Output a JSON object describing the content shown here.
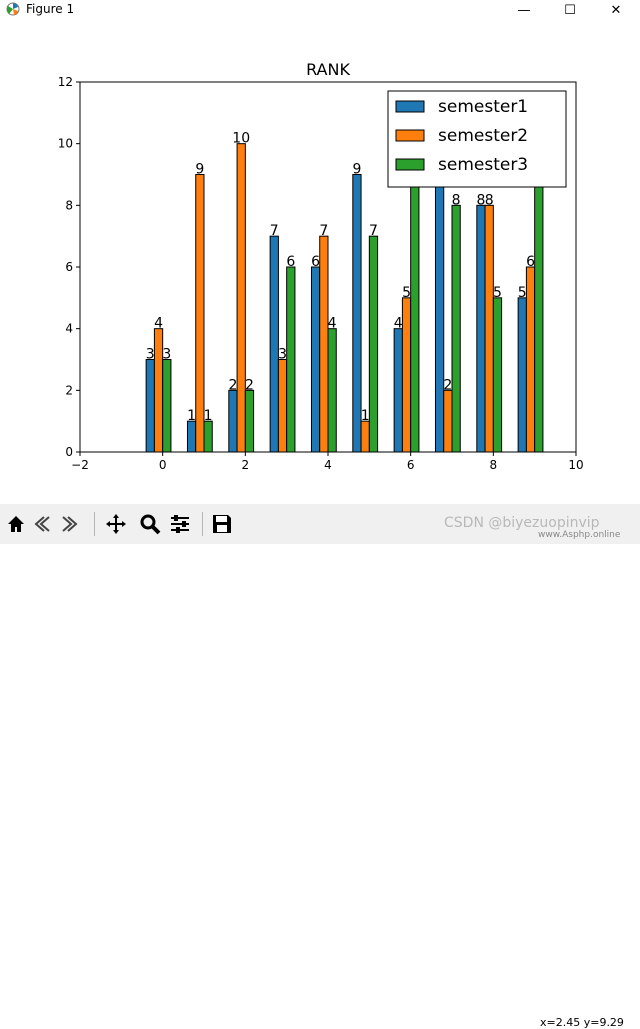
{
  "window": {
    "title": "Figure 1",
    "minimize": "—",
    "maximize": "☐",
    "close": "✕"
  },
  "toolbar": {
    "buttons": [
      "home-icon",
      "back-icon",
      "forward-icon",
      "pan-icon",
      "zoom-icon",
      "configure-icon",
      "save-icon"
    ],
    "coords": "x=2.45 y=9.29"
  },
  "watermark": {
    "text": "CSDN @biyezuopinvip",
    "site": "www.Asphp.online"
  },
  "chart_data": {
    "type": "bar",
    "title": "RANK",
    "xlabel": "",
    "ylabel": "",
    "xlim": [
      -2,
      10
    ],
    "ylim": [
      0,
      12
    ],
    "xticks": [
      -2,
      0,
      2,
      4,
      6,
      8,
      10
    ],
    "yticks": [
      0,
      2,
      4,
      6,
      8,
      10,
      12
    ],
    "x": [
      0,
      1,
      2,
      3,
      4,
      5,
      6,
      7,
      8,
      9
    ],
    "bar_width": 0.2,
    "legend_location": "upper right",
    "series": [
      {
        "name": "semester1",
        "color": "#1f77b4",
        "offset": -0.4,
        "values": [
          3,
          1,
          2,
          7,
          6,
          9,
          4,
          10,
          8,
          5
        ]
      },
      {
        "name": "semester2",
        "color": "#ff7f0e",
        "offset": -0.2,
        "values": [
          4,
          9,
          10,
          3,
          7,
          1,
          5,
          2,
          8,
          6
        ]
      },
      {
        "name": "semester3",
        "color": "#2ca02c",
        "offset": 0.0,
        "values": [
          3,
          1,
          2,
          6,
          4,
          7,
          10,
          8,
          5,
          9
        ]
      }
    ]
  }
}
